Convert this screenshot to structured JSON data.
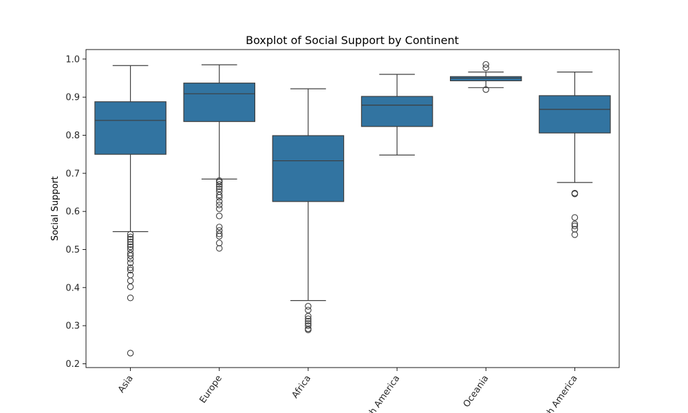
{
  "chart_data": {
    "type": "boxplot",
    "title": "Boxplot of Social Support by Continent",
    "xlabel": "",
    "ylabel": "Social Support",
    "ylim": [
      0.19,
      1.025
    ],
    "yticks": [
      0.2,
      0.3,
      0.4,
      0.5,
      0.6,
      0.7,
      0.8,
      0.9,
      1.0
    ],
    "ytick_labels": [
      "0.2",
      "0.3",
      "0.4",
      "0.5",
      "0.6",
      "0.7",
      "0.8",
      "0.9",
      "1.0"
    ],
    "grid": false,
    "colors": {
      "box": "#3274a1",
      "line": "#3d3d3d"
    },
    "categories": [
      "Asia",
      "Europe",
      "Africa",
      "North America",
      "Oceania",
      "South America"
    ],
    "boxes": [
      {
        "name": "Asia",
        "whisker_low": 0.547,
        "q1": 0.75,
        "median": 0.839,
        "q3": 0.888,
        "whisker_high": 0.983,
        "outliers": [
          0.54,
          0.533,
          0.527,
          0.52,
          0.513,
          0.507,
          0.5,
          0.49,
          0.484,
          0.475,
          0.465,
          0.452,
          0.446,
          0.433,
          0.418,
          0.402,
          0.373,
          0.228
        ]
      },
      {
        "name": "Europe",
        "whisker_low": 0.685,
        "q1": 0.836,
        "median": 0.909,
        "q3": 0.937,
        "whisker_high": 0.985,
        "outliers": [
          0.681,
          0.677,
          0.671,
          0.665,
          0.659,
          0.652,
          0.643,
          0.637,
          0.626,
          0.617,
          0.607,
          0.588,
          0.559,
          0.55,
          0.541,
          0.535,
          0.517,
          0.503
        ]
      },
      {
        "name": "Africa",
        "whisker_low": 0.366,
        "q1": 0.626,
        "median": 0.733,
        "q3": 0.799,
        "whisker_high": 0.922,
        "outliers": [
          0.351,
          0.341,
          0.325,
          0.318,
          0.312,
          0.306,
          0.3,
          0.292,
          0.289
        ]
      },
      {
        "name": "North America",
        "whisker_low": 0.748,
        "q1": 0.823,
        "median": 0.879,
        "q3": 0.902,
        "whisker_high": 0.96,
        "outliers": []
      },
      {
        "name": "Oceania",
        "whisker_low": 0.925,
        "q1": 0.943,
        "median": 0.95,
        "q3": 0.954,
        "whisker_high": 0.966,
        "outliers": [
          0.986,
          0.977,
          0.92
        ]
      },
      {
        "name": "South America",
        "whisker_low": 0.676,
        "q1": 0.806,
        "median": 0.868,
        "q3": 0.904,
        "whisker_high": 0.966,
        "outliers": [
          0.648,
          0.646,
          0.584,
          0.567,
          0.562,
          0.553,
          0.539
        ]
      }
    ]
  }
}
